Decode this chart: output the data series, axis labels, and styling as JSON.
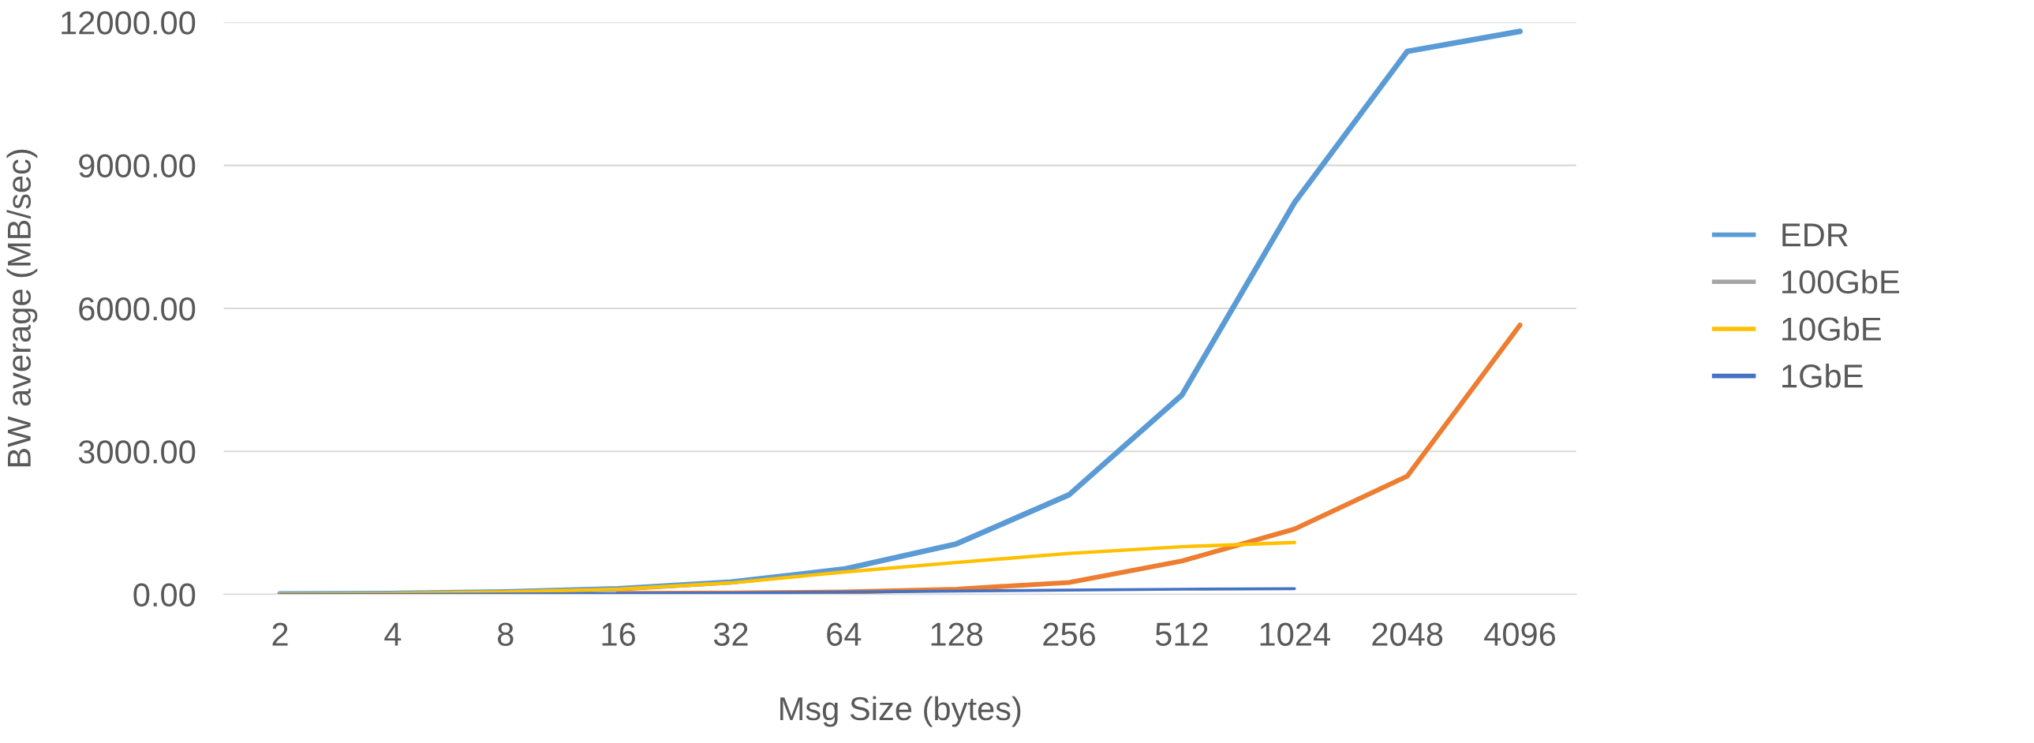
{
  "chart_data": {
    "type": "line",
    "xlabel": "Msg Size (bytes)",
    "ylabel": "BW average (MB/sec)",
    "categories": [
      "2",
      "4",
      "8",
      "16",
      "32",
      "64",
      "128",
      "256",
      "512",
      "1024",
      "2048",
      "4096"
    ],
    "series": [
      {
        "name": "EDR",
        "color": "#5b9bd5",
        "values": [
          10,
          20,
          50,
          120,
          260,
          530,
          1060,
          2090,
          4180,
          8220,
          11390,
          11810
        ]
      },
      {
        "color": "#ed7d31",
        "values": [
          null,
          null,
          null,
          20,
          30,
          50,
          110,
          250,
          700,
          1370,
          2480,
          5650
        ]
      },
      {
        "name": "100GbE",
        "color": "#a5a5a5",
        "values": [
          null,
          null,
          null,
          null,
          null,
          null,
          null,
          null,
          null,
          null,
          null,
          null
        ]
      },
      {
        "name": "10GbE",
        "color": "#ffc000",
        "values": [
          10,
          20,
          50,
          110,
          240,
          470,
          670,
          860,
          1000,
          1090,
          null,
          null
        ]
      },
      {
        "name": "1GbE",
        "color": "#4472c4",
        "values": [
          0,
          0,
          10,
          20,
          30,
          50,
          70,
          90,
          110,
          120,
          null,
          null
        ]
      }
    ],
    "ylim": [
      0,
      12000
    ],
    "yticks": [
      {
        "value": 0,
        "label": "0.00"
      },
      {
        "value": 3000,
        "label": "3000.00"
      },
      {
        "value": 6000,
        "label": "6000.00"
      },
      {
        "value": 9000,
        "label": "9000.00"
      },
      {
        "value": 12000,
        "label": "12000.00"
      }
    ],
    "grid": "y",
    "legend": "right",
    "marker": "none",
    "line_style": "solid"
  }
}
